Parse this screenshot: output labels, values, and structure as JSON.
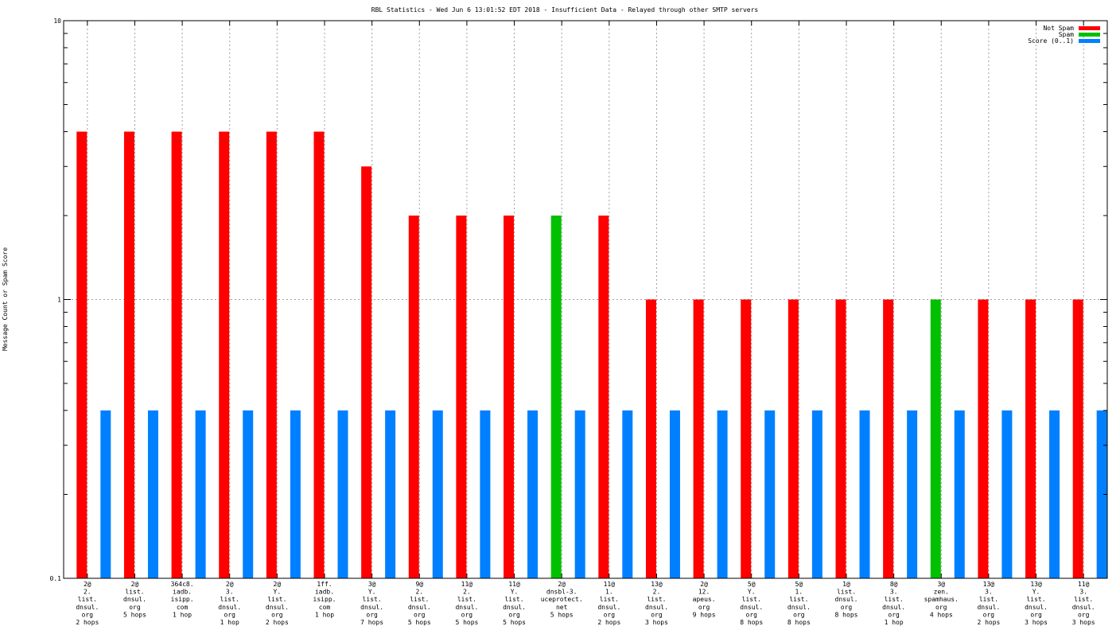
{
  "chart_data": {
    "type": "bar",
    "title": "RBL Statistics - Wed Jun  6 13:01:52 EDT 2018 - Insufficient Data - Relayed through other SMTP servers",
    "xlabel": "",
    "ylabel": "Message Count or Spam Score",
    "yscale": "log",
    "ylim": [
      0.1,
      10
    ],
    "yticks": [
      {
        "value": 10,
        "label": "10"
      },
      {
        "value": 1,
        "label": "1"
      },
      {
        "value": 0.1,
        "label": "0.1"
      }
    ],
    "grid": true,
    "legend": "top-right",
    "categories": [
      [
        "2@",
        "2.",
        "list.",
        "dnsul.",
        "org",
        "2 hops"
      ],
      [
        "2@",
        "list.",
        "dnsul.",
        "org",
        "5 hops"
      ],
      [
        "364c8.",
        "iadb.",
        "isipp.",
        "com",
        "1 hop"
      ],
      [
        "2@",
        "3.",
        "list.",
        "dnsul.",
        "org",
        "1 hop"
      ],
      [
        "2@",
        "Y.",
        "list.",
        "dnsul.",
        "org",
        "2 hops"
      ],
      [
        "1ff.",
        "iadb.",
        "isipp.",
        "com",
        "1 hop"
      ],
      [
        "3@",
        "Y.",
        "list.",
        "dnsul.",
        "org",
        "7 hops"
      ],
      [
        "9@",
        "2.",
        "list.",
        "dnsul.",
        "org",
        "5 hops"
      ],
      [
        "11@",
        "2.",
        "list.",
        "dnsul.",
        "org",
        "5 hops"
      ],
      [
        "11@",
        "Y.",
        "list.",
        "dnsul.",
        "org",
        "5 hops"
      ],
      [
        "2@",
        "dnsbl-3.",
        "uceprotect.",
        "net",
        "5 hops"
      ],
      [
        "11@",
        "1.",
        "list.",
        "dnsul.",
        "org",
        "2 hops"
      ],
      [
        "13@",
        "2.",
        "list.",
        "dnsul.",
        "org",
        "3 hops"
      ],
      [
        "2@",
        "12.",
        "apeus.",
        "org",
        "9 hops"
      ],
      [
        "5@",
        "Y.",
        "list.",
        "dnsul.",
        "org",
        "8 hops"
      ],
      [
        "5@",
        "1.",
        "list.",
        "dnsul.",
        "org",
        "8 hops"
      ],
      [
        "1@",
        "list.",
        "dnsul.",
        "org",
        "8 hops"
      ],
      [
        "8@",
        "3.",
        "list.",
        "dnsul.",
        "org",
        "1 hop"
      ],
      [
        "3@",
        "zen.",
        "spamhaus.",
        "org",
        "4 hops"
      ],
      [
        "13@",
        "3.",
        "list.",
        "dnsul.",
        "org",
        "2 hops"
      ],
      [
        "13@",
        "Y.",
        "list.",
        "dnsul.",
        "org",
        "3 hops"
      ],
      [
        "11@",
        "3.",
        "list.",
        "dnsul.",
        "org",
        "3 hops"
      ]
    ],
    "series": [
      {
        "name": "Not Spam",
        "color": "#ff0000",
        "values": [
          4,
          4,
          4,
          4,
          4,
          4,
          3,
          2,
          2,
          2,
          null,
          2,
          1,
          1,
          1,
          1,
          1,
          1,
          null,
          1,
          1,
          1
        ]
      },
      {
        "name": "Spam",
        "color": "#00c000",
        "values": [
          null,
          null,
          null,
          null,
          null,
          null,
          null,
          null,
          null,
          null,
          2,
          null,
          null,
          null,
          null,
          null,
          null,
          null,
          1,
          null,
          null,
          null
        ]
      },
      {
        "name": "Score (0..1)",
        "color": "#0080ff",
        "values": [
          0.4,
          0.4,
          0.4,
          0.4,
          0.4,
          0.4,
          0.4,
          0.4,
          0.4,
          0.4,
          0.4,
          0.4,
          0.4,
          0.4,
          0.4,
          0.4,
          0.4,
          0.4,
          0.4,
          0.4,
          0.4,
          0.4
        ]
      }
    ]
  }
}
